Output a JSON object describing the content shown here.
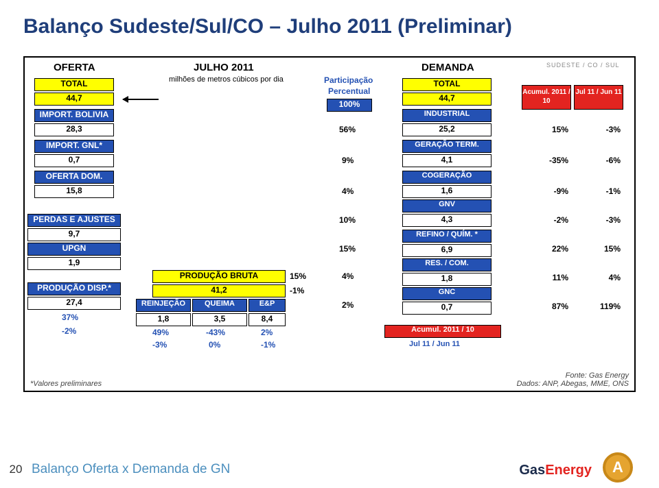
{
  "title": "Balanço Sudeste/Sul/CO – Julho 2011 (Preliminar)",
  "oferta": {
    "header": "OFERTA",
    "total_lbl": "TOTAL",
    "total": "44,7",
    "import_bolivia_lbl": "IMPORT. BOLIVIA",
    "import_bolivia": "28,3",
    "import_gnl_lbl": "IMPORT. GNL*",
    "import_gnl": "0,7",
    "oferta_dom_lbl": "OFERTA DOM.",
    "oferta_dom": "15,8",
    "perdas_lbl": "PERDAS E AJUSTES",
    "perdas": "9,7",
    "upgn_lbl": "UPGN",
    "upgn": "1,9",
    "prod_disp_lbl": "PRODUÇÃO DISP.*",
    "prod_disp": "27,4",
    "prod_disp_pct": "37%",
    "prod_disp_pcts": [
      "-2%"
    ]
  },
  "center": {
    "month": "JULHO 2011",
    "sub": "milhões de metros cúbicos por dia",
    "prod_bruta_lbl": "PRODUÇÃO BRUTA",
    "prod_bruta": "41,2",
    "prod_bruta_right1": "15%",
    "prod_bruta_right2": "-1%",
    "reinjecao": "REINJEÇÃO",
    "queima": "QUEIMA",
    "ep": "E&P",
    "v_reinj": "1,8",
    "v_queima": "3,5",
    "v_ep": "8,4",
    "r2": [
      "49%",
      "-43%",
      "2%"
    ],
    "r3": [
      "-3%",
      "0%",
      "-1%"
    ]
  },
  "part": {
    "lbl1": "Participação",
    "lbl2": "Percentual",
    "vals": [
      "100%",
      "56%",
      "9%",
      "4%",
      "10%",
      "15%",
      "4%",
      "2%"
    ]
  },
  "demanda": {
    "header": "DEMANDA",
    "total_lbl": "TOTAL",
    "total": "44,7",
    "items": [
      {
        "lbl": "INDUSTRIAL",
        "val": "25,2"
      },
      {
        "lbl": "GERAÇÃO TERM.",
        "val": "4,1"
      },
      {
        "lbl": "COGERAÇÃO",
        "val": "1,6"
      },
      {
        "lbl": "GNV",
        "val": "4,3"
      },
      {
        "lbl": "REFINO / QUÍM. *",
        "val": "6,9"
      },
      {
        "lbl": "RES. / COM.",
        "val": "1,8"
      },
      {
        "lbl": "GNC",
        "val": "0,7"
      }
    ],
    "bottom1": "Acumul. 2011 / 10",
    "bottom2": "Jul 11 / Jun 11"
  },
  "right": {
    "region": "SUDESTE / CO / SUL",
    "col1_hdr": "Acumul. 2011 / 10",
    "col2_hdr": "Jul 11 / Jun 11",
    "rows": [
      [
        "15%",
        "-3%"
      ],
      [
        "-35%",
        "-6%"
      ],
      [
        "-9%",
        "-1%"
      ],
      [
        "-2%",
        "-3%"
      ],
      [
        "22%",
        "15%"
      ],
      [
        "11%",
        "4%"
      ],
      [
        "87%",
        "119%"
      ]
    ]
  },
  "footnote_left": "*Valores preliminares",
  "source1": "Fonte: Gas Energy",
  "source2": "Dados: ANP, Abegas, MME, ONS",
  "footer": {
    "page": "20",
    "caption": "Balanço Oferta x Demanda de GN",
    "brand1": "Gas",
    "brand2": "Energy",
    "medal": "A"
  }
}
